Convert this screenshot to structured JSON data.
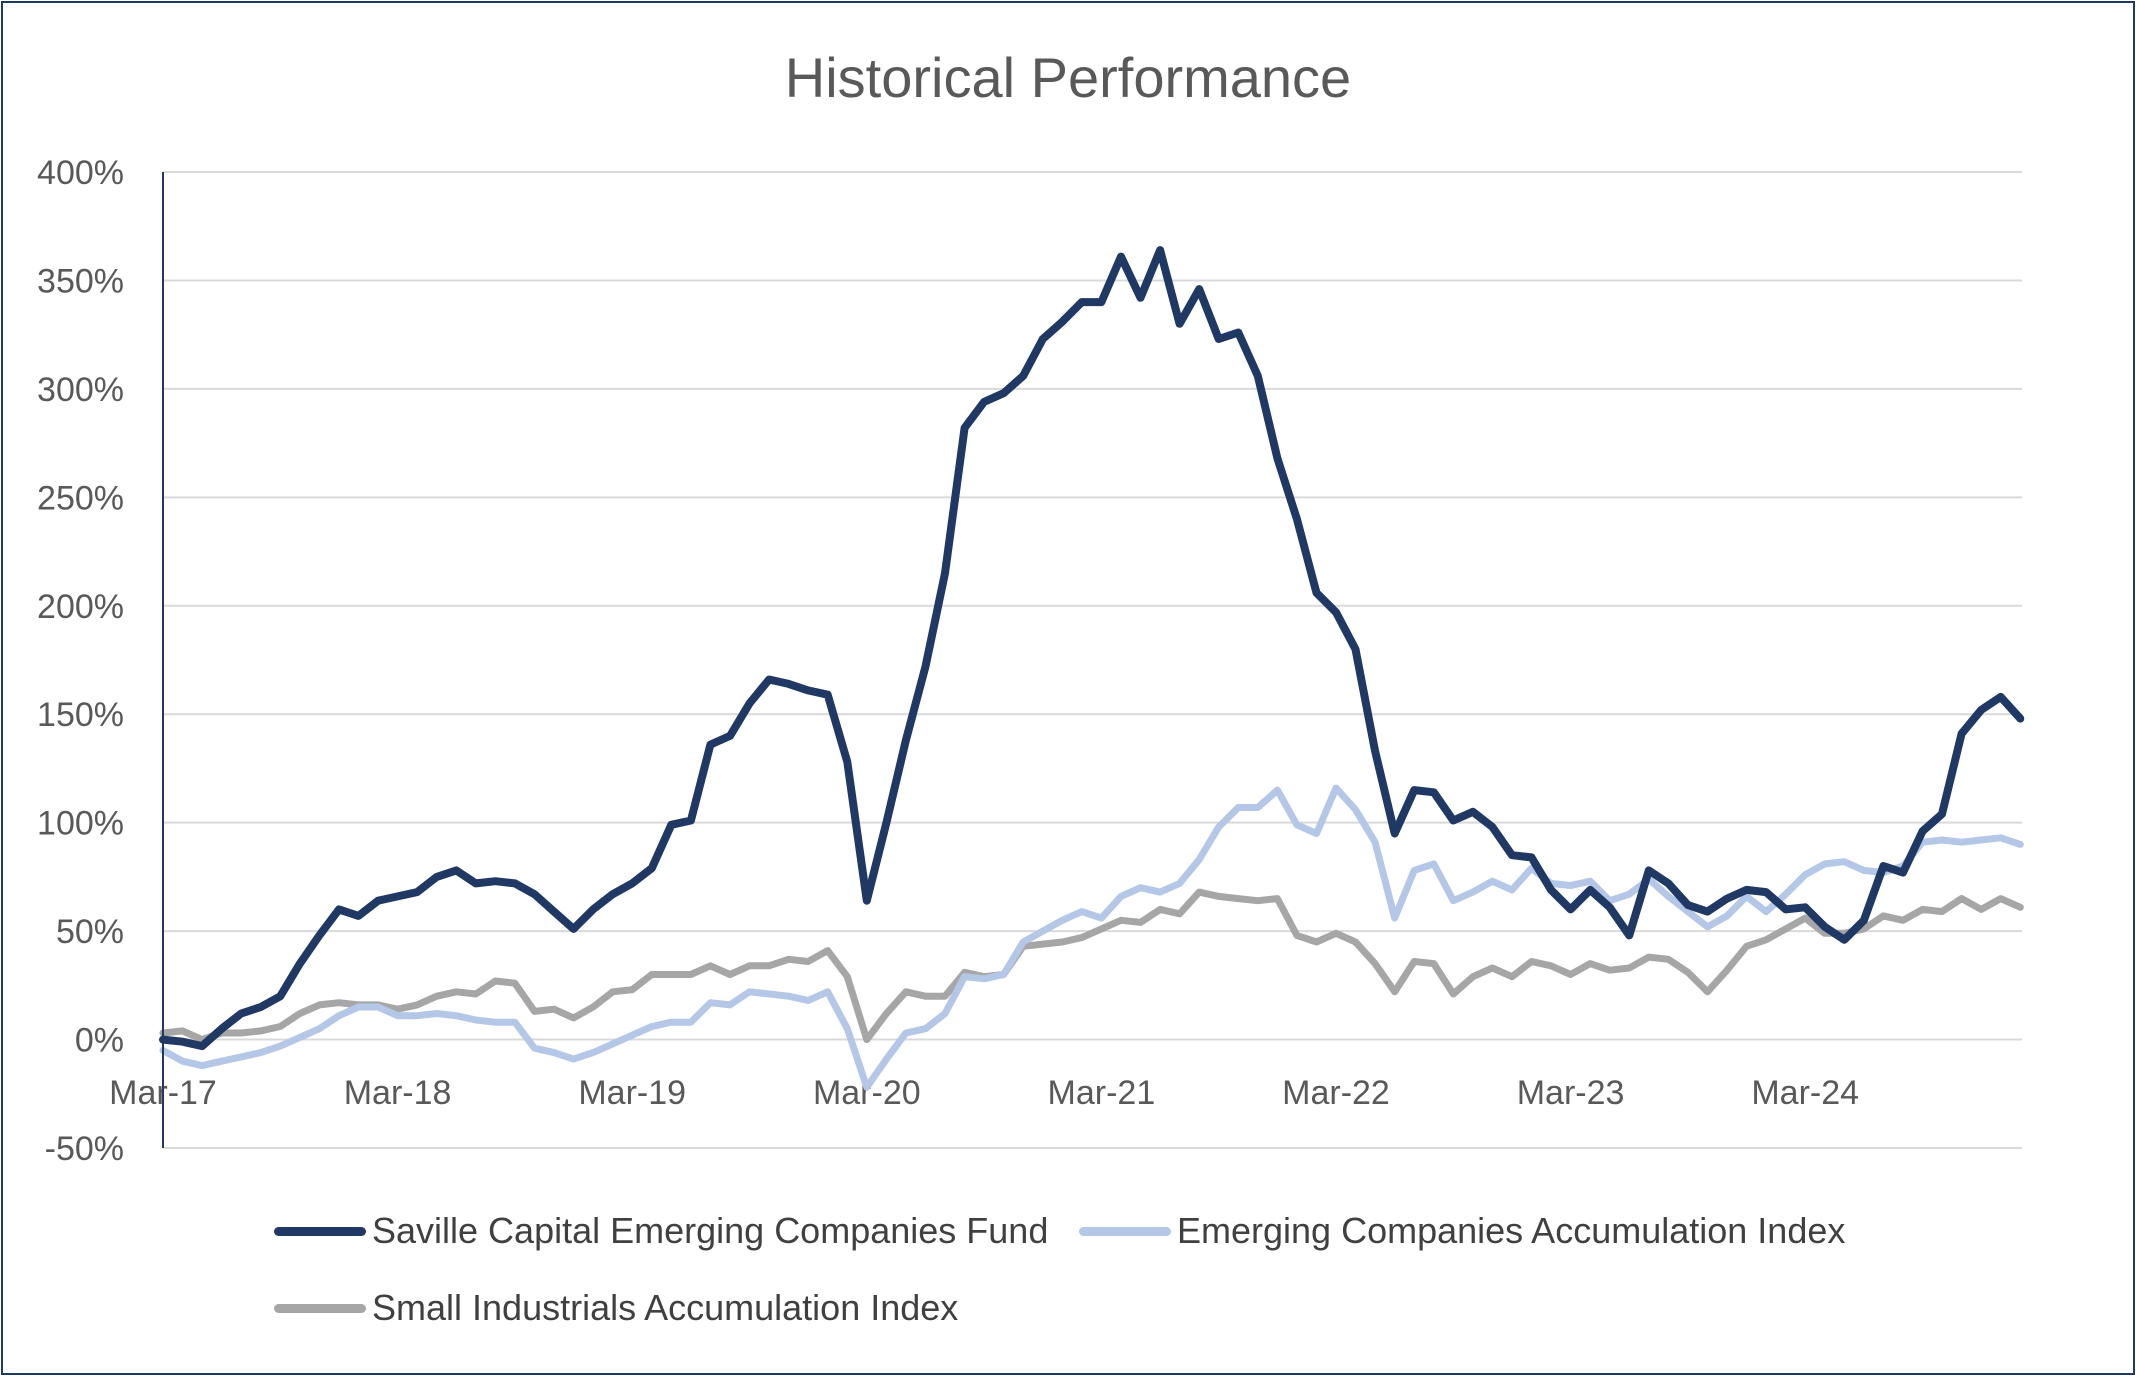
{
  "chart_data": {
    "type": "line",
    "title": "Historical Performance",
    "xlabel": "",
    "ylabel": "",
    "ylim": [
      -50,
      400
    ],
    "yticks": [
      "-50%",
      "0%",
      "50%",
      "100%",
      "150%",
      "200%",
      "250%",
      "300%",
      "350%",
      "400%"
    ],
    "ytick_values": [
      -50,
      0,
      50,
      100,
      150,
      200,
      250,
      300,
      350,
      400
    ],
    "xticks": [
      "Mar-17",
      "Mar-18",
      "Mar-19",
      "Mar-20",
      "Mar-21",
      "Mar-22",
      "Mar-23",
      "Mar-24"
    ],
    "x_start": "Mar-17",
    "x_end": "Feb-25",
    "grid": true,
    "legend_position": "bottom",
    "series": [
      {
        "name": "Saville Capital Emerging Companies Fund",
        "color": "#1f3864",
        "values": [
          0,
          -1,
          -3,
          5,
          12,
          15,
          20,
          35,
          48,
          60,
          57,
          64,
          66,
          68,
          75,
          78,
          72,
          73,
          72,
          67,
          59,
          51,
          60,
          67,
          72,
          79,
          99,
          101,
          136,
          140,
          155,
          166,
          164,
          161,
          159,
          128,
          64,
          100,
          138,
          172,
          215,
          282,
          294,
          298,
          306,
          323,
          331,
          340,
          340,
          361,
          342,
          364,
          330,
          346,
          323,
          326,
          306,
          268,
          240,
          206,
          197,
          180,
          133,
          95,
          115,
          114,
          101,
          105,
          98,
          85,
          84,
          69,
          60,
          69,
          61,
          48,
          78,
          72,
          62,
          59,
          65,
          69,
          68,
          60,
          61,
          52,
          46,
          55,
          80,
          77,
          96,
          104,
          141,
          152,
          158,
          148
        ]
      },
      {
        "name": "Emerging Companies Accumulation Index",
        "color": "#b4c7e7",
        "values": [
          -5,
          -10,
          -12,
          -10,
          -8,
          -6,
          -3,
          1,
          5,
          11,
          15,
          15,
          11,
          11,
          12,
          11,
          9,
          8,
          8,
          -4,
          -6,
          -9,
          -6,
          -2,
          2,
          6,
          8,
          8,
          17,
          16,
          22,
          21,
          20,
          18,
          22,
          5,
          -22,
          -9,
          3,
          5,
          12,
          29,
          28,
          30,
          45,
          50,
          55,
          59,
          56,
          66,
          70,
          68,
          72,
          83,
          98,
          107,
          107,
          115,
          99,
          95,
          116,
          106,
          91,
          56,
          78,
          81,
          64,
          68,
          73,
          69,
          79,
          72,
          71,
          73,
          64,
          67,
          74,
          66,
          59,
          52,
          57,
          66,
          59,
          67,
          76,
          81,
          82,
          78,
          77,
          80,
          91,
          92,
          91,
          92,
          93,
          90
        ]
      },
      {
        "name": "Small Industrials Accumulation Index",
        "color": "#a6a6a6",
        "values": [
          3,
          4,
          0,
          3,
          3,
          4,
          6,
          12,
          16,
          17,
          16,
          16,
          14,
          16,
          20,
          22,
          21,
          27,
          26,
          13,
          14,
          10,
          15,
          22,
          23,
          30,
          30,
          30,
          34,
          30,
          34,
          34,
          37,
          36,
          41,
          29,
          0,
          12,
          22,
          20,
          20,
          31,
          29,
          30,
          43,
          44,
          45,
          47,
          51,
          55,
          54,
          60,
          58,
          68,
          66,
          65,
          64,
          65,
          48,
          45,
          49,
          45,
          35,
          22,
          36,
          35,
          21,
          29,
          33,
          29,
          36,
          34,
          30,
          35,
          32,
          33,
          38,
          37,
          31,
          22,
          32,
          43,
          46,
          51,
          56,
          49,
          49,
          51,
          57,
          55,
          60,
          59,
          65,
          60,
          65,
          61
        ]
      }
    ]
  }
}
